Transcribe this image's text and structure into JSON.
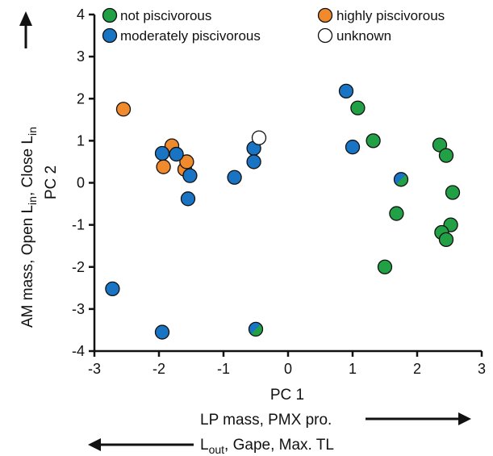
{
  "chart_data": {
    "type": "scatter",
    "xlabel": "PC 1",
    "ylabel": "PC 2",
    "xlim": [
      -3,
      3
    ],
    "ylim": [
      -4,
      4
    ],
    "x_ticks": [
      "-3",
      "-2",
      "-1",
      "0",
      "1",
      "2",
      "3"
    ],
    "y_ticks": [
      "4",
      "3",
      "2",
      "1",
      "0",
      "-1",
      "-2",
      "-3",
      "-4"
    ],
    "x_positive_label": "LP mass, PMX pro.",
    "x_negative_label_main": "L",
    "x_negative_label_sub": "out",
    "x_negative_label_rest": ", Gape, Max. TL",
    "y_positive_label_parts": [
      "AM mass, Open L",
      "in",
      ", Close L",
      "in"
    ],
    "legend_placement": "top",
    "grid": false,
    "categories": [
      {
        "key": "not",
        "name": "not piscivorous",
        "color": "#22a045"
      },
      {
        "key": "highly",
        "name": "highly piscivorous",
        "color": "#f08a2c"
      },
      {
        "key": "moderately",
        "name": "moderately piscivorous",
        "color": "#1a74c4"
      },
      {
        "key": "unknown",
        "name": "unknown",
        "color": "#ffffff"
      }
    ],
    "series": [
      {
        "name": "not piscivorous",
        "key": "not",
        "points": [
          {
            "x": 1.08,
            "y": 1.78
          },
          {
            "x": 1.32,
            "y": 1.0
          },
          {
            "x": 2.35,
            "y": 0.9
          },
          {
            "x": 2.45,
            "y": 0.65
          },
          {
            "x": 2.55,
            "y": -0.23
          },
          {
            "x": 1.68,
            "y": -0.73
          },
          {
            "x": 2.52,
            "y": -1.0
          },
          {
            "x": 2.38,
            "y": -1.18
          },
          {
            "x": 2.45,
            "y": -1.35
          },
          {
            "x": 1.5,
            "y": -2.0
          }
        ]
      },
      {
        "name": "highly piscivorous",
        "key": "highly",
        "points": [
          {
            "x": -2.55,
            "y": 1.75
          },
          {
            "x": -1.8,
            "y": 0.88
          },
          {
            "x": -1.93,
            "y": 0.38
          },
          {
            "x": -1.6,
            "y": 0.32
          },
          {
            "x": -1.57,
            "y": 0.5
          }
        ]
      },
      {
        "name": "moderately piscivorous",
        "key": "moderately",
        "points": [
          {
            "x": 0.9,
            "y": 2.18
          },
          {
            "x": 1.0,
            "y": 0.85
          },
          {
            "x": -0.53,
            "y": 0.82
          },
          {
            "x": -0.53,
            "y": 0.5
          },
          {
            "x": -0.83,
            "y": 0.13
          },
          {
            "x": -1.95,
            "y": 0.7
          },
          {
            "x": -1.73,
            "y": 0.68
          },
          {
            "x": -1.52,
            "y": 0.17
          },
          {
            "x": -1.55,
            "y": -0.38
          },
          {
            "x": -2.72,
            "y": -2.52
          },
          {
            "x": -1.95,
            "y": -3.55
          }
        ]
      },
      {
        "name": "unknown",
        "key": "unknown",
        "points": [
          {
            "x": -0.45,
            "y": 1.07
          }
        ]
      },
      {
        "name": "moderately / not piscivorous",
        "key": "mixed",
        "points": [
          {
            "x": 1.75,
            "y": 0.08
          },
          {
            "x": -0.5,
            "y": -3.48
          }
        ]
      }
    ]
  }
}
